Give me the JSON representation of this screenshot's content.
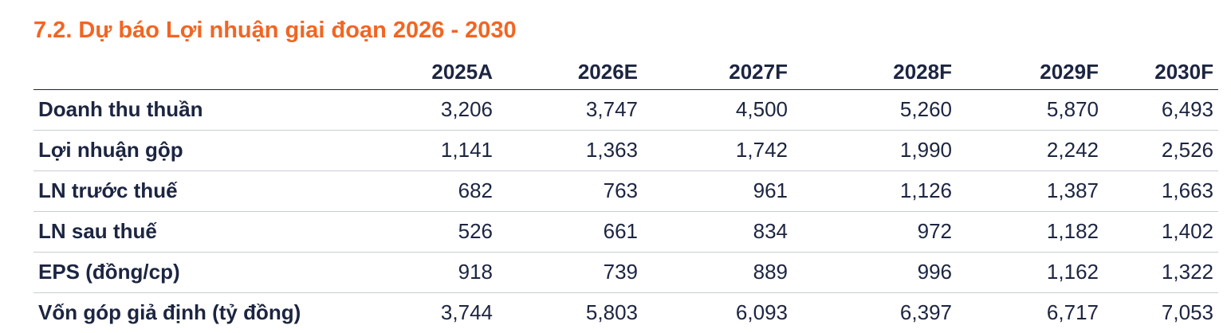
{
  "title": "7.2. Dự báo Lợi nhuận giai đoạn 2026 - 2030",
  "columns": [
    "2025A",
    "2026E",
    "2027F",
    "2028F",
    "2029F",
    "2030F"
  ],
  "rows": [
    {
      "label": "Doanh thu thuần",
      "values": [
        "3,206",
        "3,747",
        "4,500",
        "5,260",
        "5,870",
        "6,493"
      ]
    },
    {
      "label": "Lợi nhuận gộp",
      "values": [
        "1,141",
        "1,363",
        "1,742",
        "1,990",
        "2,242",
        "2,526"
      ]
    },
    {
      "label": "LN trước thuế",
      "values": [
        "682",
        "763",
        "961",
        "1,126",
        "1,387",
        "1,663"
      ]
    },
    {
      "label": "LN sau thuế",
      "values": [
        "526",
        "661",
        "834",
        "972",
        "1,182",
        "1,402"
      ]
    },
    {
      "label": "EPS (đồng/cp)",
      "values": [
        "918",
        "739",
        "889",
        "996",
        "1,162",
        "1,322"
      ]
    },
    {
      "label": "Vốn góp giả định (tỷ đồng)",
      "values": [
        "3,744",
        "5,803",
        "6,093",
        "6,397",
        "6,717",
        "7,053"
      ]
    }
  ]
}
